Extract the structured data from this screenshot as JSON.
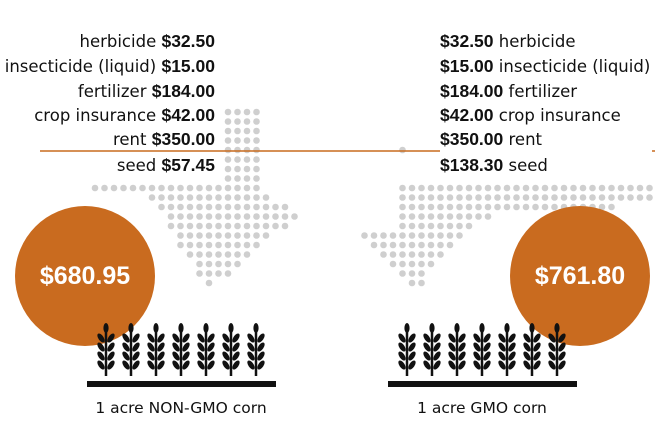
{
  "colors": {
    "accent": "#c96b1f",
    "dots": "#cfcfcf",
    "ink": "#111111"
  },
  "icons": {
    "crop": "wheat-stalk-icon",
    "arrow": "dotted-arrow-icon"
  },
  "non_gmo": {
    "costs": [
      {
        "label": "herbicide",
        "amount": "$32.50"
      },
      {
        "label": "insecticide (liquid)",
        "amount": "$15.00"
      },
      {
        "label": "fertilizer",
        "amount": "$184.00"
      },
      {
        "label": "crop insurance",
        "amount": "$42.00"
      },
      {
        "label": "rent",
        "amount": "$350.00"
      },
      {
        "label": "seed",
        "amount": "$57.45"
      }
    ],
    "total": "$680.95",
    "caption": "1 acre NON-GMO corn"
  },
  "gmo": {
    "costs": [
      {
        "label": "herbicide",
        "amount": "$32.50"
      },
      {
        "label": "insecticide (liquid)",
        "amount": "$15.00"
      },
      {
        "label": "fertilizer",
        "amount": "$184.00"
      },
      {
        "label": "crop insurance",
        "amount": "$42.00"
      },
      {
        "label": "rent",
        "amount": "$350.00"
      },
      {
        "label": "seed",
        "amount": "$138.30"
      }
    ],
    "total": "$761.80",
    "caption": "1 acre GMO corn"
  }
}
